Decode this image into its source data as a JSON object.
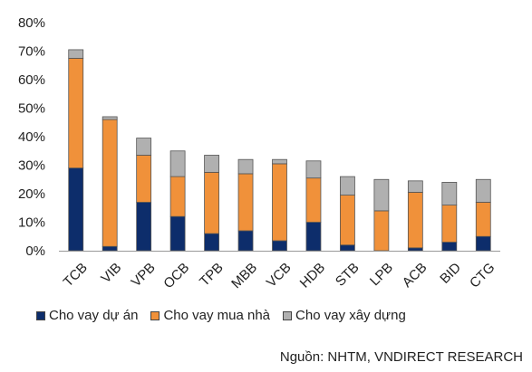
{
  "chart_data": {
    "type": "bar",
    "stacked": true,
    "categories": [
      "TCB",
      "VIB",
      "VPB",
      "OCB",
      "TPB",
      "MBB",
      "VCB",
      "HDB",
      "STB",
      "LPB",
      "ACB",
      "BID",
      "CTG"
    ],
    "series": [
      {
        "name": "Cho vay dự án",
        "color": "#0d2d6b",
        "values": [
          29,
          1.5,
          17,
          12,
          6,
          7,
          3.5,
          10,
          2,
          0,
          1,
          3,
          5
        ]
      },
      {
        "name": "Cho vay mua nhà",
        "color": "#f0913a",
        "values": [
          38.5,
          44.5,
          16.5,
          14,
          21.5,
          20,
          27,
          15.5,
          17.5,
          14,
          19.5,
          13,
          12
        ]
      },
      {
        "name": "Cho vay xây dựng",
        "color": "#b0b0b0",
        "values": [
          3,
          1,
          6,
          9,
          6,
          5,
          1.5,
          6,
          6.5,
          11,
          4,
          8,
          8
        ]
      }
    ],
    "ylim": [
      0,
      80
    ],
    "yticks": [
      "0%",
      "10%",
      "20%",
      "30%",
      "40%",
      "50%",
      "60%",
      "70%",
      "80%"
    ],
    "grid": false,
    "legend_position": "bottom"
  },
  "source": "Nguồn: NHTM, VNDIRECT RESEARCH"
}
